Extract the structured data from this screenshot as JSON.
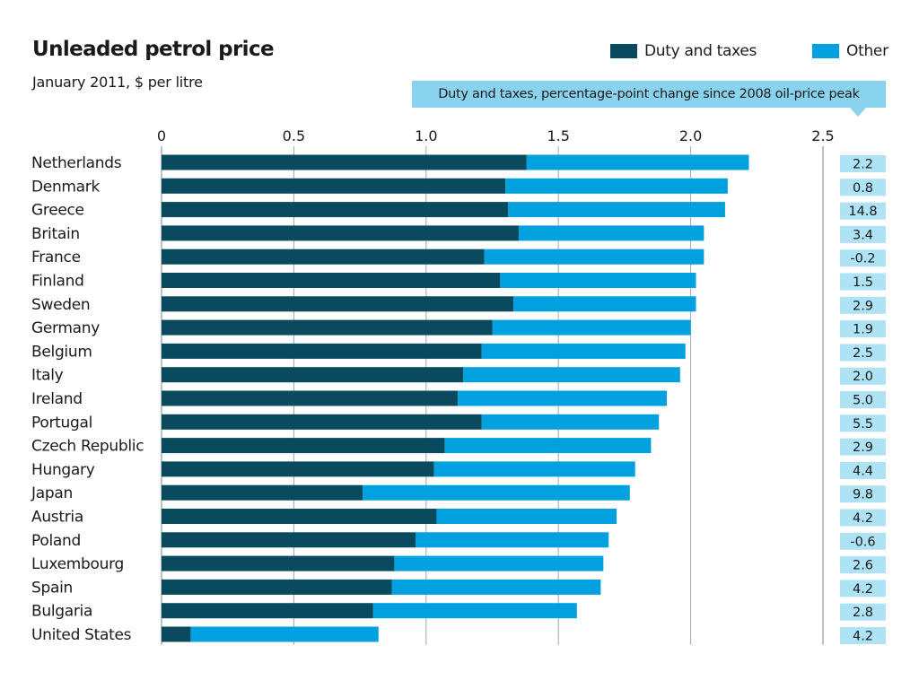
{
  "colors": {
    "duty": "#0a4a5e",
    "other": "#00a1de",
    "change_box": "#aee2f5",
    "note_box": "#8ad3ee",
    "grid": "#9aa8b0"
  },
  "chart_data": {
    "type": "bar",
    "orientation": "horizontal",
    "stacked": true,
    "title": "Unleaded petrol price",
    "subtitle": "January 2011, $ per litre",
    "xlim": [
      0,
      2.5
    ],
    "xticks": [
      0,
      0.5,
      1.0,
      1.5,
      2.0,
      2.5
    ],
    "xtick_labels": [
      "0",
      "0.5",
      "1.0",
      "1.5",
      "2.0",
      "2.5"
    ],
    "grid": true,
    "legend_position": "top-right",
    "categories": [
      "Netherlands",
      "Denmark",
      "Greece",
      "Britain",
      "France",
      "Finland",
      "Sweden",
      "Germany",
      "Belgium",
      "Italy",
      "Ireland",
      "Portugal",
      "Czech Republic",
      "Hungary",
      "Japan",
      "Austria",
      "Poland",
      "Luxembourg",
      "Spain",
      "Bulgaria",
      "United States"
    ],
    "series": [
      {
        "name": "Duty and taxes",
        "values": [
          1.38,
          1.3,
          1.31,
          1.35,
          1.22,
          1.28,
          1.33,
          1.25,
          1.21,
          1.14,
          1.12,
          1.21,
          1.07,
          1.03,
          0.76,
          1.04,
          0.96,
          0.88,
          0.87,
          0.8,
          0.11
        ]
      },
      {
        "name": "Other",
        "values": [
          0.84,
          0.84,
          0.82,
          0.7,
          0.83,
          0.74,
          0.69,
          0.75,
          0.77,
          0.82,
          0.79,
          0.67,
          0.78,
          0.76,
          1.01,
          0.68,
          0.73,
          0.79,
          0.79,
          0.77,
          0.71
        ]
      }
    ],
    "side_panel": {
      "title": "Duty and taxes, percentage-point change since 2008 oil-price peak",
      "values": [
        "2.2",
        "0.8",
        "14.8",
        "3.4",
        "-0.2",
        "1.5",
        "2.9",
        "1.9",
        "2.5",
        "2.0",
        "5.0",
        "5.5",
        "2.9",
        "4.4",
        "9.8",
        "4.2",
        "-0.6",
        "2.6",
        "4.2",
        "2.8",
        "4.2"
      ]
    }
  }
}
